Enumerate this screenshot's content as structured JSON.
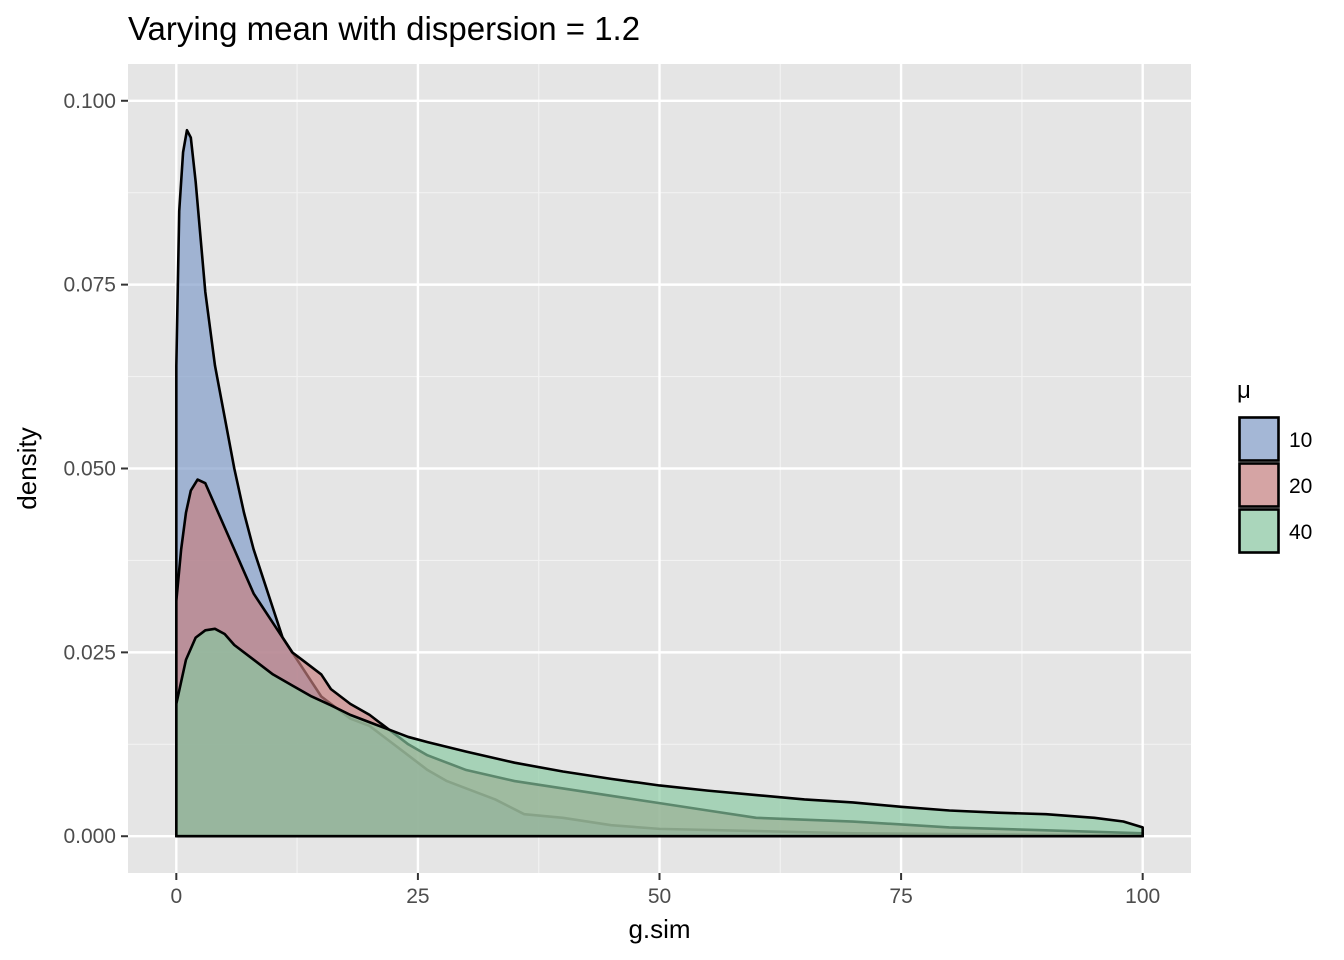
{
  "chart_data": {
    "type": "area",
    "title": "Varying mean with dispersion = 1.2",
    "xlabel": "g.sim",
    "ylabel": "density",
    "xlim": [
      -5,
      105
    ],
    "ylim": [
      -0.005,
      0.105
    ],
    "x_ticks": [
      0,
      25,
      50,
      75,
      100
    ],
    "x_tick_labels": [
      "0",
      "25",
      "50",
      "75",
      "100"
    ],
    "y_ticks": [
      0,
      0.025,
      0.05,
      0.075,
      0.1
    ],
    "y_tick_labels": [
      "0.000",
      "0.025",
      "0.050",
      "0.075",
      "0.100"
    ],
    "grid": true,
    "legend": {
      "title": "μ",
      "position": "right"
    },
    "series": [
      {
        "name": "10",
        "color": "#7f9bc9",
        "points": [
          [
            0,
            0.064
          ],
          [
            0.3,
            0.085
          ],
          [
            0.7,
            0.093
          ],
          [
            1.1,
            0.096
          ],
          [
            1.5,
            0.095
          ],
          [
            2,
            0.089
          ],
          [
            3,
            0.074
          ],
          [
            4,
            0.064
          ],
          [
            5,
            0.057
          ],
          [
            6,
            0.05
          ],
          [
            7,
            0.044
          ],
          [
            8,
            0.039
          ],
          [
            9,
            0.035
          ],
          [
            10,
            0.031
          ],
          [
            11,
            0.027
          ],
          [
            12,
            0.025
          ],
          [
            13,
            0.023
          ],
          [
            14,
            0.021
          ],
          [
            15,
            0.019
          ],
          [
            16,
            0.018
          ],
          [
            18,
            0.016
          ],
          [
            20,
            0.015
          ],
          [
            22,
            0.013
          ],
          [
            24,
            0.011
          ],
          [
            26,
            0.009
          ],
          [
            28,
            0.0075
          ],
          [
            30,
            0.0065
          ],
          [
            33,
            0.005
          ],
          [
            36,
            0.003
          ],
          [
            40,
            0.0025
          ],
          [
            45,
            0.0015
          ],
          [
            50,
            0.001
          ],
          [
            60,
            0.0007
          ],
          [
            70,
            0.0004
          ],
          [
            80,
            0.0003
          ],
          [
            90,
            0.0002
          ],
          [
            100,
            0.0001
          ]
        ]
      },
      {
        "name": "20",
        "color": "#c77f7f",
        "points": [
          [
            0,
            0.032
          ],
          [
            0.5,
            0.039
          ],
          [
            1,
            0.044
          ],
          [
            1.5,
            0.047
          ],
          [
            2.2,
            0.0485
          ],
          [
            3,
            0.048
          ],
          [
            4,
            0.045
          ],
          [
            5,
            0.042
          ],
          [
            6,
            0.039
          ],
          [
            7,
            0.036
          ],
          [
            8,
            0.033
          ],
          [
            9,
            0.031
          ],
          [
            10,
            0.029
          ],
          [
            11,
            0.027
          ],
          [
            12,
            0.025
          ],
          [
            13,
            0.024
          ],
          [
            14,
            0.023
          ],
          [
            15,
            0.022
          ],
          [
            16,
            0.02
          ],
          [
            18,
            0.018
          ],
          [
            20,
            0.0165
          ],
          [
            22,
            0.0145
          ],
          [
            24,
            0.0125
          ],
          [
            26,
            0.011
          ],
          [
            28,
            0.01
          ],
          [
            30,
            0.009
          ],
          [
            35,
            0.0075
          ],
          [
            40,
            0.0065
          ],
          [
            45,
            0.0055
          ],
          [
            50,
            0.0045
          ],
          [
            55,
            0.0035
          ],
          [
            60,
            0.0025
          ],
          [
            70,
            0.002
          ],
          [
            80,
            0.0012
          ],
          [
            90,
            0.0008
          ],
          [
            100,
            0.0004
          ]
        ]
      },
      {
        "name": "40",
        "color": "#87c9a0",
        "points": [
          [
            0,
            0.018
          ],
          [
            0.5,
            0.021
          ],
          [
            1,
            0.024
          ],
          [
            2,
            0.027
          ],
          [
            3,
            0.028
          ],
          [
            4,
            0.0282
          ],
          [
            5,
            0.0275
          ],
          [
            6,
            0.026
          ],
          [
            8,
            0.024
          ],
          [
            10,
            0.022
          ],
          [
            12,
            0.0205
          ],
          [
            14,
            0.019
          ],
          [
            16,
            0.0178
          ],
          [
            18,
            0.0165
          ],
          [
            20,
            0.0155
          ],
          [
            22,
            0.0145
          ],
          [
            24,
            0.0135
          ],
          [
            26,
            0.0128
          ],
          [
            30,
            0.0115
          ],
          [
            35,
            0.01
          ],
          [
            40,
            0.0088
          ],
          [
            45,
            0.0078
          ],
          [
            50,
            0.0069
          ],
          [
            55,
            0.0062
          ],
          [
            60,
            0.0056
          ],
          [
            65,
            0.005
          ],
          [
            70,
            0.0046
          ],
          [
            75,
            0.004
          ],
          [
            80,
            0.0035
          ],
          [
            85,
            0.0032
          ],
          [
            90,
            0.003
          ],
          [
            95,
            0.0025
          ],
          [
            98,
            0.002
          ],
          [
            100,
            0.0012
          ]
        ]
      }
    ]
  }
}
